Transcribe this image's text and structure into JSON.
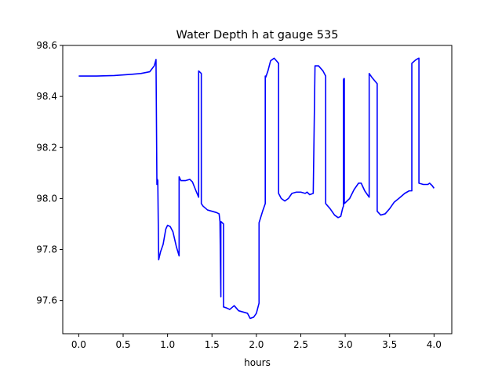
{
  "chart_data": {
    "type": "line",
    "title": "Water Depth h at gauge 535",
    "xlabel": "hours",
    "ylabel": "",
    "xlim": [
      -0.18,
      4.2
    ],
    "ylim": [
      97.47,
      98.6
    ],
    "grid": false,
    "xticks": [
      0.0,
      0.5,
      1.0,
      1.5,
      2.0,
      2.5,
      3.0,
      3.5,
      4.0
    ],
    "xtick_labels": [
      "0.0",
      "0.5",
      "1.0",
      "1.5",
      "2.0",
      "2.5",
      "3.0",
      "3.5",
      "4.0"
    ],
    "yticks": [
      97.6,
      97.8,
      98.0,
      98.2,
      98.4,
      98.6
    ],
    "ytick_labels": [
      "97.6",
      "97.8",
      "98.0",
      "98.2",
      "98.4",
      "98.6"
    ],
    "series": [
      {
        "color": "#0000ff",
        "x": [
          0.0,
          0.2,
          0.4,
          0.6,
          0.7,
          0.8,
          0.85,
          0.87,
          0.88,
          0.885,
          0.89,
          0.9,
          0.9,
          0.92,
          0.95,
          0.98,
          1.0,
          1.03,
          1.06,
          1.1,
          1.13,
          1.13,
          1.15,
          1.2,
          1.25,
          1.28,
          1.32,
          1.35,
          1.35,
          1.38,
          1.38,
          1.4,
          1.45,
          1.5,
          1.55,
          1.58,
          1.59,
          1.6,
          1.6,
          1.63,
          1.63,
          1.67,
          1.7,
          1.75,
          1.8,
          1.85,
          1.9,
          1.93,
          1.97,
          2.0,
          2.03,
          2.03,
          2.07,
          2.1,
          2.1,
          2.105,
          2.11,
          2.13,
          2.16,
          2.2,
          2.25,
          2.25,
          2.28,
          2.32,
          2.36,
          2.4,
          2.45,
          2.5,
          2.55,
          2.57,
          2.6,
          2.64,
          2.66,
          2.7,
          2.75,
          2.78,
          2.78,
          2.83,
          2.88,
          2.92,
          2.95,
          2.97,
          2.98,
          2.98,
          2.985,
          2.99,
          2.99,
          3.05,
          3.1,
          3.15,
          3.18,
          3.22,
          3.27,
          3.27,
          3.3,
          3.36,
          3.36,
          3.4,
          3.45,
          3.5,
          3.55,
          3.62,
          3.67,
          3.72,
          3.75,
          3.75,
          3.8,
          3.83,
          3.83,
          3.88,
          3.93,
          3.95,
          3.98,
          4.0
        ],
        "values": [
          98.48,
          98.48,
          98.482,
          98.487,
          98.49,
          98.497,
          98.52,
          98.545,
          98.055,
          98.075,
          98.07,
          97.76,
          97.76,
          97.79,
          97.82,
          97.88,
          97.895,
          97.89,
          97.87,
          97.81,
          97.775,
          98.085,
          98.07,
          98.07,
          98.075,
          98.065,
          98.03,
          98.005,
          98.5,
          98.49,
          97.98,
          97.97,
          97.955,
          97.95,
          97.945,
          97.94,
          97.91,
          97.615,
          97.91,
          97.9,
          97.575,
          97.57,
          97.565,
          97.58,
          97.56,
          97.555,
          97.55,
          97.53,
          97.535,
          97.55,
          97.59,
          97.905,
          97.95,
          97.98,
          98.48,
          98.475,
          98.48,
          98.5,
          98.54,
          98.55,
          98.53,
          98.02,
          98.0,
          97.99,
          98.0,
          98.02,
          98.025,
          98.025,
          98.02,
          98.025,
          98.015,
          98.02,
          98.52,
          98.52,
          98.5,
          98.48,
          97.98,
          97.96,
          97.935,
          97.925,
          97.93,
          97.96,
          97.97,
          98.465,
          98.47,
          98.47,
          97.98,
          98.0,
          98.035,
          98.06,
          98.06,
          98.03,
          98.005,
          98.49,
          98.475,
          98.45,
          97.95,
          97.935,
          97.94,
          97.96,
          97.985,
          98.005,
          98.02,
          98.03,
          98.03,
          98.53,
          98.545,
          98.55,
          98.06,
          98.055,
          98.055,
          98.06,
          98.05,
          98.04
        ]
      }
    ]
  }
}
